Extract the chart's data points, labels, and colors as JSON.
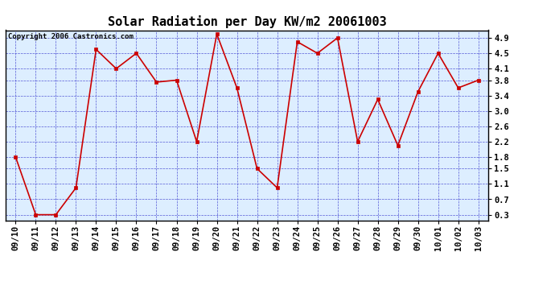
{
  "title": "Solar Radiation per Day KW/m2 20061003",
  "copyright_text": "Copyright 2006 Castronics.com",
  "dates": [
    "09/10",
    "09/11",
    "09/12",
    "09/13",
    "09/14",
    "09/15",
    "09/16",
    "09/17",
    "09/18",
    "09/19",
    "09/20",
    "09/21",
    "09/22",
    "09/23",
    "09/24",
    "09/25",
    "09/26",
    "09/27",
    "09/28",
    "09/29",
    "09/30",
    "10/01",
    "10/02",
    "10/03"
  ],
  "values": [
    1.8,
    0.3,
    0.3,
    1.0,
    4.6,
    4.1,
    4.5,
    3.75,
    3.8,
    2.2,
    5.0,
    3.6,
    1.5,
    1.0,
    4.8,
    4.5,
    4.9,
    2.2,
    3.3,
    2.1,
    3.5,
    4.5,
    3.6,
    3.8
  ],
  "line_color": "#cc0000",
  "marker_color": "#cc0000",
  "plot_bg": "#ddeeff",
  "grid_color": "#3333cc",
  "yticks": [
    0.3,
    0.7,
    1.1,
    1.5,
    1.8,
    2.2,
    2.6,
    3.0,
    3.4,
    3.8,
    4.1,
    4.5,
    4.9
  ],
  "ylim": [
    0.15,
    5.1
  ],
  "title_fontsize": 11,
  "copyright_fontsize": 6.5,
  "tick_fontsize": 7.5,
  "outer_bg": "#ffffff"
}
